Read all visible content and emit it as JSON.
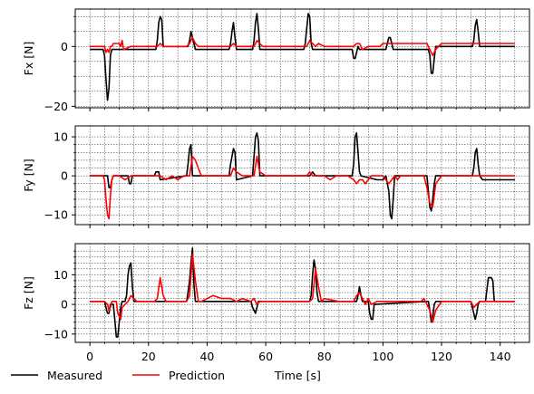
{
  "chart_data": [
    {
      "type": "line",
      "ylabel": "Fx [N]",
      "ylim": [
        -20.5,
        12.5
      ],
      "yticks": [
        -20,
        0
      ],
      "yticklabels": [
        "−20",
        "0"
      ],
      "minor_yticks": [
        -15,
        -10,
        -5,
        5,
        10
      ],
      "xlim": [
        -5,
        150
      ],
      "grid": true,
      "series": [
        {
          "name": "Measured",
          "color": "#000000",
          "x": [
            0,
            4.5,
            5,
            5.5,
            6,
            6.5,
            7,
            7.5,
            14,
            14.5,
            22.5,
            23,
            23.5,
            24,
            24.5,
            25,
            33,
            33.5,
            34,
            34.5,
            35,
            35.5,
            36,
            47.5,
            48,
            48.5,
            49,
            49.5,
            50,
            55.5,
            56,
            56.5,
            57,
            57.5,
            58,
            73,
            73.5,
            74,
            74.5,
            75,
            75.5,
            76,
            89.5,
            90,
            90.5,
            91,
            91.5,
            92,
            101,
            101.5,
            102,
            102.5,
            103,
            103.5,
            115.5,
            116,
            116.5,
            117,
            117.5,
            118,
            130.5,
            131,
            131.5,
            132,
            132.5,
            133,
            145
          ],
          "y": [
            -1,
            -1,
            -3,
            -11,
            -18,
            -14,
            -3,
            -1,
            -1,
            -1,
            -1,
            2,
            8,
            10,
            9,
            0,
            0,
            0,
            2,
            5,
            3,
            1,
            -1,
            -1,
            1,
            5,
            8,
            3,
            -1,
            -1,
            2,
            8,
            11,
            6,
            -1,
            -1,
            1,
            6,
            11,
            10,
            1,
            -1,
            -1,
            -4,
            -4,
            -2,
            0,
            -1,
            -1,
            1,
            3,
            3,
            1,
            -1,
            -1,
            -3,
            -9,
            -9,
            -4,
            0,
            0,
            2,
            7,
            9,
            5,
            0,
            0
          ]
        },
        {
          "name": "Prediction",
          "color": "#ff0000",
          "x": [
            0,
            4.5,
            5,
            5.5,
            6,
            6.5,
            7,
            7.5,
            8,
            9,
            10,
            10.5,
            11,
            11.5,
            14,
            22,
            23,
            24,
            25,
            33,
            34,
            35,
            36,
            37,
            40,
            45,
            48,
            49,
            50,
            55,
            56,
            57,
            58,
            59,
            70,
            73,
            74,
            75,
            76,
            77,
            78,
            80,
            89,
            90,
            91,
            92,
            93,
            95,
            99,
            100,
            101,
            103,
            105,
            107,
            108,
            110,
            115,
            116,
            117,
            118,
            120,
            130,
            131,
            132,
            133,
            135,
            145
          ],
          "y": [
            0,
            0,
            0,
            -2,
            -1,
            -2,
            0,
            0,
            1,
            1,
            1,
            0,
            2,
            -1,
            0,
            0,
            0,
            1,
            0,
            0,
            1,
            3,
            1,
            0,
            0,
            0,
            0,
            1,
            0,
            0,
            0,
            2,
            1,
            0,
            0,
            0,
            0,
            2,
            1,
            0,
            1,
            0,
            0,
            0,
            1,
            1,
            -1,
            0,
            0,
            1,
            1,
            1,
            1,
            1,
            1,
            1,
            1,
            -1,
            -3,
            -1,
            1,
            1,
            1,
            1,
            1,
            1,
            1
          ]
        }
      ]
    },
    {
      "type": "line",
      "ylabel": "Fy [N]",
      "ylim": [
        -12.5,
        12.8
      ],
      "yticks": [
        -10,
        0,
        10
      ],
      "yticklabels": [
        "−10",
        "0",
        "10"
      ],
      "minor_yticks": [
        -8,
        -6,
        -4,
        -2,
        2,
        4,
        6,
        8
      ],
      "xlim": [
        -5,
        150
      ],
      "grid": true,
      "series": [
        {
          "name": "Measured",
          "color": "#000000",
          "x": [
            0,
            5,
            6,
            6.5,
            7,
            7.5,
            8,
            13,
            13.5,
            14,
            14.5,
            22,
            22.5,
            23,
            23.5,
            24,
            33,
            33.5,
            34,
            34.5,
            35,
            47.5,
            48,
            48.5,
            49,
            49.5,
            50,
            55.5,
            56,
            56.5,
            57,
            57.5,
            58,
            75,
            76,
            77,
            89.5,
            90,
            90.5,
            91,
            91.5,
            92,
            92.5,
            98,
            100,
            101,
            102,
            102.5,
            103,
            103.5,
            104,
            115,
            115.5,
            116,
            116.5,
            117,
            117.5,
            118,
            130.5,
            131,
            131.5,
            132,
            132.5,
            133,
            134,
            135,
            136,
            145
          ],
          "y": [
            0,
            0,
            0,
            -3,
            -3,
            -1,
            0,
            0,
            -2,
            -2,
            0,
            0,
            1,
            1,
            1,
            -1,
            0,
            3,
            7,
            8,
            0,
            0,
            3,
            5,
            7,
            6,
            -1,
            0,
            5,
            10,
            11,
            9,
            0,
            0,
            1,
            0,
            0,
            3,
            10,
            11,
            6,
            1,
            0,
            -1,
            -1,
            0,
            -4,
            -10,
            -11,
            -6,
            0,
            0,
            -4,
            -8,
            -9,
            -6,
            -2,
            0,
            0,
            2,
            6,
            7,
            3,
            0,
            -1,
            -1,
            -1,
            -1
          ]
        },
        {
          "name": "Prediction",
          "color": "#ff0000",
          "x": [
            0,
            4,
            4.5,
            5,
            5.5,
            6,
            6.5,
            7,
            7.5,
            8,
            10,
            12,
            14,
            16,
            18,
            20,
            22,
            24,
            26,
            28,
            30,
            32,
            34,
            35,
            36,
            38,
            40,
            42,
            44,
            46,
            48,
            49,
            50,
            52,
            54,
            56,
            57,
            58,
            60,
            62,
            64,
            66,
            68,
            70,
            72,
            74,
            75,
            76,
            78,
            80,
            82,
            84,
            86,
            88,
            90,
            91,
            92,
            93,
            94,
            95,
            96,
            98,
            100,
            101,
            102,
            103,
            104,
            105,
            106,
            108,
            110,
            112,
            114,
            115,
            116,
            117,
            118,
            120,
            122,
            124,
            126,
            128,
            130,
            132,
            134,
            136,
            138,
            140,
            145
          ],
          "y": [
            0,
            0,
            0,
            -1,
            -6,
            -10,
            -11,
            -5,
            -1,
            0,
            0,
            -1,
            0,
            0,
            0,
            0,
            0,
            0,
            -1,
            0,
            -1,
            0,
            0,
            5,
            4,
            0,
            0,
            0,
            0,
            0,
            0,
            2,
            1,
            0,
            0,
            0,
            5,
            1,
            0,
            0,
            0,
            0,
            0,
            0,
            0,
            0,
            1,
            0,
            0,
            0,
            -1,
            0,
            0,
            0,
            -1,
            -2,
            -1,
            -1,
            -2,
            -1,
            0,
            0,
            0,
            -1,
            -2,
            -1,
            0,
            -1,
            0,
            0,
            0,
            0,
            0,
            -3,
            -7,
            -8,
            -2,
            0,
            0,
            0,
            0,
            0,
            0,
            0,
            0,
            0,
            0,
            0,
            0
          ]
        }
      ]
    },
    {
      "type": "line",
      "ylabel": "Fz [N]",
      "xlabel": "Time [s]",
      "ylim": [
        -12.8,
        20.5
      ],
      "yticks": [
        -10,
        0,
        10
      ],
      "yticklabels": [
        "−10",
        "0",
        "10"
      ],
      "minor_yticks": [
        -8,
        -6,
        -4,
        -2,
        2,
        4,
        6,
        8,
        12,
        14,
        16,
        18
      ],
      "xlim": [
        -5,
        150
      ],
      "xticks": [
        0,
        20,
        40,
        60,
        80,
        100,
        120,
        140
      ],
      "xticklabels": [
        "0",
        "20",
        "40",
        "60",
        "80",
        "100",
        "120",
        "140"
      ],
      "minor_xticks": [
        5,
        10,
        15,
        25,
        30,
        35,
        45,
        50,
        55,
        65,
        70,
        75,
        85,
        90,
        95,
        105,
        110,
        115,
        125,
        130,
        135,
        145
      ],
      "grid": true,
      "series": [
        {
          "name": "Measured",
          "color": "#000000",
          "x": [
            0,
            5,
            5.5,
            6,
            6.5,
            7,
            8,
            8.5,
            9,
            9.5,
            10,
            10.5,
            11,
            12,
            12.5,
            13,
            13.5,
            14,
            14.5,
            15,
            33,
            33.5,
            34,
            34.5,
            35,
            35.5,
            36,
            55,
            55.5,
            56,
            56.5,
            57,
            57.5,
            58,
            75,
            75.5,
            76,
            76.5,
            77,
            77.5,
            78,
            91,
            91.5,
            92,
            92.5,
            93,
            93.5,
            94,
            95,
            95.5,
            96,
            96.5,
            97,
            115,
            115.5,
            116,
            116.5,
            117,
            117.5,
            118,
            130,
            130.5,
            131,
            131.5,
            132,
            132.5,
            133,
            134,
            135,
            135.5,
            136,
            137,
            137.5,
            138,
            145
          ],
          "y": [
            1,
            1,
            -1,
            -3,
            -3,
            0,
            0,
            -5,
            -11,
            -11,
            -6,
            -1,
            1,
            1,
            3,
            10,
            13,
            14,
            6,
            1,
            1,
            4,
            8,
            14,
            19,
            7,
            1,
            1,
            -1,
            -2,
            -3,
            -1,
            1,
            1,
            1,
            3,
            10,
            15,
            12,
            4,
            1,
            1,
            3,
            6,
            3,
            1,
            1,
            1,
            1,
            -3,
            -5,
            -5,
            0,
            1,
            1,
            -2,
            -6,
            -4,
            0,
            1,
            1,
            -1,
            -3,
            -5,
            -3,
            0,
            1,
            1,
            1,
            5,
            9,
            9,
            8,
            1,
            1
          ]
        },
        {
          "name": "Prediction",
          "color": "#ff0000",
          "x": [
            0,
            5,
            6,
            6.5,
            7,
            7.5,
            8,
            9,
            9.5,
            10,
            10.5,
            11,
            12,
            13,
            14,
            15,
            16,
            18,
            20,
            22,
            23,
            24,
            25,
            26,
            30,
            33,
            34,
            35,
            36,
            37,
            38,
            40,
            42,
            45,
            48,
            50,
            52,
            55,
            56,
            57,
            58,
            60,
            65,
            70,
            75,
            76,
            77,
            78,
            79,
            80,
            85,
            90,
            91,
            92,
            93,
            94,
            95,
            96,
            98,
            100,
            105,
            110,
            113,
            114,
            115,
            116,
            117,
            118,
            120,
            125,
            130,
            131,
            132,
            133,
            135,
            140,
            145
          ],
          "y": [
            1,
            1,
            0,
            -2,
            -1,
            1,
            1,
            1,
            -3,
            -4,
            -5,
            -1,
            0,
            1,
            3,
            2,
            1,
            1,
            1,
            1,
            2,
            9,
            3,
            1,
            1,
            1,
            3,
            17,
            8,
            1,
            1,
            2,
            3,
            2,
            2,
            1,
            2,
            1,
            2,
            0,
            1,
            1,
            1,
            1,
            1,
            2,
            12,
            6,
            1,
            2,
            1,
            1,
            3,
            4,
            2,
            0,
            2,
            0,
            1,
            1,
            1,
            1,
            1,
            2,
            0,
            -2,
            -6,
            -2,
            1,
            1,
            1,
            -1,
            0,
            1,
            1,
            1,
            1
          ]
        }
      ]
    }
  ],
  "legend": {
    "placement": "bottom-left",
    "entries": [
      {
        "label": "Measured",
        "color": "#000000"
      },
      {
        "label": "Prediction",
        "color": "#ff0000"
      }
    ]
  }
}
